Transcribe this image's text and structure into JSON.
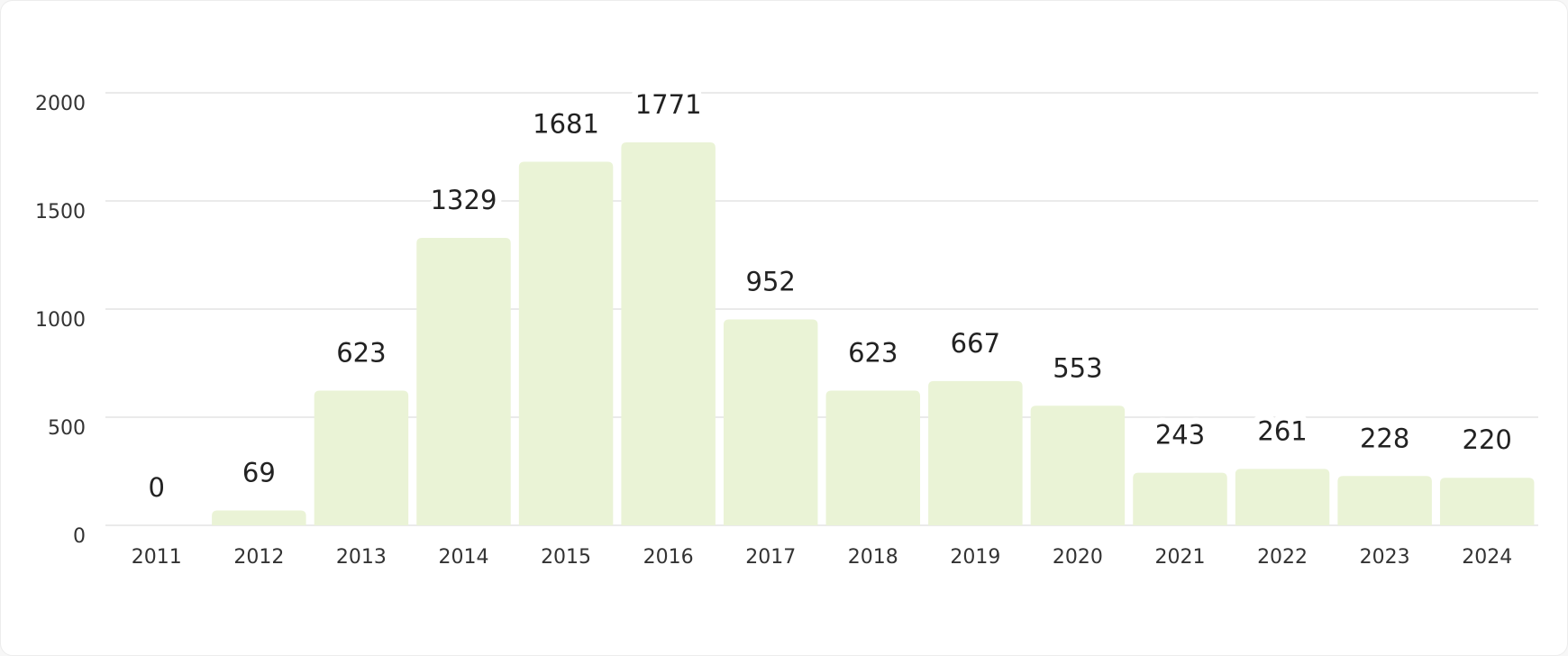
{
  "chart_data": {
    "type": "bar",
    "categories": [
      "2011",
      "2012",
      "2013",
      "2014",
      "2015",
      "2016",
      "2017",
      "2018",
      "2019",
      "2020",
      "2021",
      "2022",
      "2023",
      "2024"
    ],
    "values": [
      0,
      69,
      623,
      1329,
      1681,
      1771,
      952,
      623,
      667,
      553,
      243,
      261,
      228,
      220
    ],
    "color": "#eaf3d6",
    "ylim": [
      0,
      2000
    ],
    "yticks": [
      0,
      500,
      1000,
      1500,
      2000
    ],
    "grid": true
  }
}
